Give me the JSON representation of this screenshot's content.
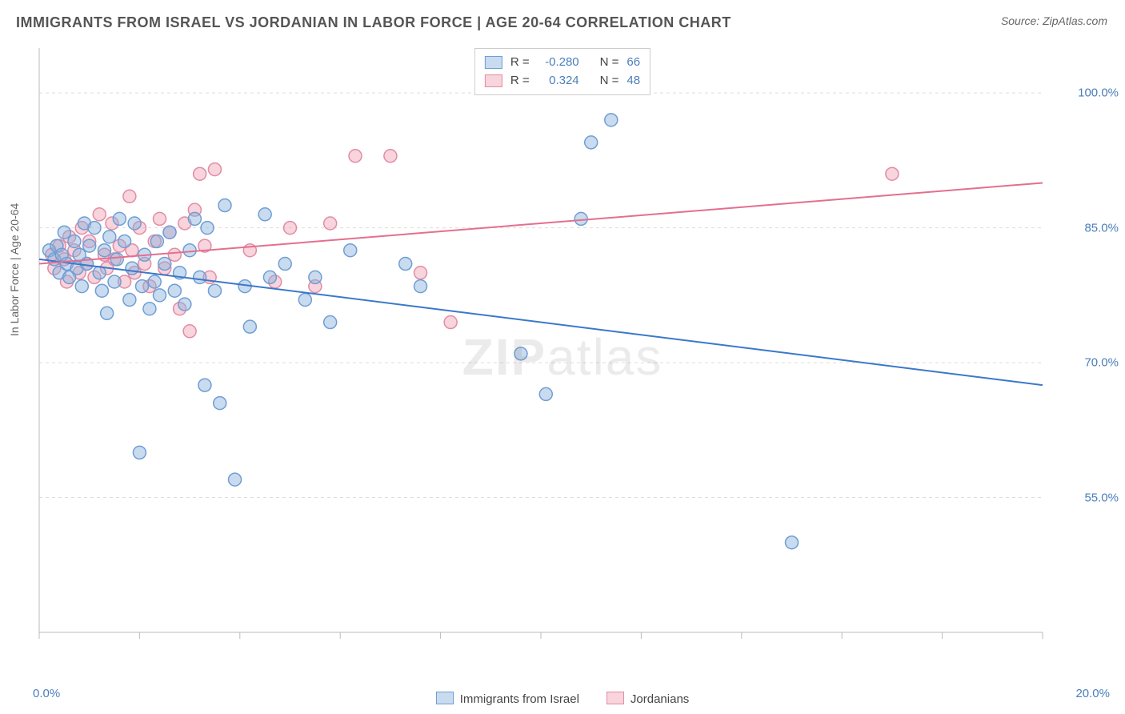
{
  "title": "IMMIGRANTS FROM ISRAEL VS JORDANIAN IN LABOR FORCE | AGE 20-64 CORRELATION CHART",
  "source_label": "Source: ",
  "source_name": "ZipAtlas.com",
  "ylabel": "In Labor Force | Age 20-64",
  "watermark_a": "ZIP",
  "watermark_b": "atlas",
  "chart": {
    "type": "scatter",
    "xlim": [
      0.0,
      20.0
    ],
    "ylim": [
      40.0,
      105.0
    ],
    "xticks": [
      0,
      2,
      4,
      6,
      8,
      10,
      12,
      14,
      16,
      18,
      20
    ],
    "xtick_labels_shown": {
      "0": "0.0%",
      "20": "20.0%"
    },
    "yticks": [
      55.0,
      70.0,
      85.0,
      100.0
    ],
    "ytick_labels": [
      "55.0%",
      "70.0%",
      "85.0%",
      "100.0%"
    ],
    "grid_color": "#dddddd",
    "grid_dash": "4,4",
    "axis_color": "#bbbbbb",
    "background_color": "#ffffff",
    "marker_radius": 8,
    "marker_stroke_width": 1.5,
    "line_width": 2,
    "label_fontsize": 15,
    "label_color": "#4a7ebb",
    "series": [
      {
        "name": "Immigrants from Israel",
        "fill": "rgba(135,175,220,0.45)",
        "stroke": "#6f9ed4",
        "line_color": "#3b78c9",
        "R": "-0.280",
        "N": "66",
        "trend": {
          "x1": 0.0,
          "y1": 81.5,
          "x2": 20.0,
          "y2": 67.5
        },
        "points": [
          [
            0.2,
            82.5
          ],
          [
            0.3,
            81.5
          ],
          [
            0.35,
            83.0
          ],
          [
            0.4,
            80.0
          ],
          [
            0.45,
            82.0
          ],
          [
            0.5,
            84.5
          ],
          [
            0.55,
            81.0
          ],
          [
            0.6,
            79.5
          ],
          [
            0.7,
            83.5
          ],
          [
            0.75,
            80.5
          ],
          [
            0.8,
            82.0
          ],
          [
            0.85,
            78.5
          ],
          [
            0.9,
            85.5
          ],
          [
            0.95,
            81.0
          ],
          [
            1.0,
            83.0
          ],
          [
            1.1,
            85.0
          ],
          [
            1.2,
            80.0
          ],
          [
            1.25,
            78.0
          ],
          [
            1.3,
            82.5
          ],
          [
            1.35,
            75.5
          ],
          [
            1.4,
            84.0
          ],
          [
            1.5,
            79.0
          ],
          [
            1.55,
            81.5
          ],
          [
            1.6,
            86.0
          ],
          [
            1.7,
            83.5
          ],
          [
            1.8,
            77.0
          ],
          [
            1.85,
            80.5
          ],
          [
            1.9,
            85.5
          ],
          [
            2.0,
            60.0
          ],
          [
            2.05,
            78.5
          ],
          [
            2.1,
            82.0
          ],
          [
            2.2,
            76.0
          ],
          [
            2.3,
            79.0
          ],
          [
            2.35,
            83.5
          ],
          [
            2.4,
            77.5
          ],
          [
            2.5,
            81.0
          ],
          [
            2.6,
            84.5
          ],
          [
            2.7,
            78.0
          ],
          [
            2.8,
            80.0
          ],
          [
            2.9,
            76.5
          ],
          [
            3.0,
            82.5
          ],
          [
            3.1,
            86.0
          ],
          [
            3.2,
            79.5
          ],
          [
            3.3,
            67.5
          ],
          [
            3.35,
            85.0
          ],
          [
            3.5,
            78.0
          ],
          [
            3.6,
            65.5
          ],
          [
            3.7,
            87.5
          ],
          [
            3.9,
            57.0
          ],
          [
            4.1,
            78.5
          ],
          [
            4.2,
            74.0
          ],
          [
            4.5,
            86.5
          ],
          [
            4.6,
            79.5
          ],
          [
            4.9,
            81.0
          ],
          [
            5.3,
            77.0
          ],
          [
            5.5,
            79.5
          ],
          [
            5.8,
            74.5
          ],
          [
            6.2,
            82.5
          ],
          [
            7.3,
            81.0
          ],
          [
            7.6,
            78.5
          ],
          [
            9.6,
            71.0
          ],
          [
            10.1,
            66.5
          ],
          [
            10.8,
            86.0
          ],
          [
            11.0,
            94.5
          ],
          [
            11.4,
            97.0
          ],
          [
            15.0,
            50.0
          ]
        ]
      },
      {
        "name": "Jordanians",
        "fill": "rgba(240,160,180,0.45)",
        "stroke": "#e28ca4",
        "line_color": "#e36f8f",
        "R": "0.324",
        "N": "48",
        "trend": {
          "x1": 0.0,
          "y1": 81.0,
          "x2": 20.0,
          "y2": 90.0
        },
        "points": [
          [
            0.25,
            82.0
          ],
          [
            0.3,
            80.5
          ],
          [
            0.4,
            83.0
          ],
          [
            0.5,
            81.5
          ],
          [
            0.55,
            79.0
          ],
          [
            0.6,
            84.0
          ],
          [
            0.7,
            82.5
          ],
          [
            0.8,
            80.0
          ],
          [
            0.85,
            85.0
          ],
          [
            0.95,
            81.0
          ],
          [
            1.0,
            83.5
          ],
          [
            1.1,
            79.5
          ],
          [
            1.2,
            86.5
          ],
          [
            1.3,
            82.0
          ],
          [
            1.35,
            80.5
          ],
          [
            1.45,
            85.5
          ],
          [
            1.5,
            81.5
          ],
          [
            1.6,
            83.0
          ],
          [
            1.7,
            79.0
          ],
          [
            1.8,
            88.5
          ],
          [
            1.85,
            82.5
          ],
          [
            1.9,
            80.0
          ],
          [
            2.0,
            85.0
          ],
          [
            2.1,
            81.0
          ],
          [
            2.2,
            78.5
          ],
          [
            2.3,
            83.5
          ],
          [
            2.4,
            86.0
          ],
          [
            2.5,
            80.5
          ],
          [
            2.6,
            84.5
          ],
          [
            2.7,
            82.0
          ],
          [
            2.8,
            76.0
          ],
          [
            2.9,
            85.5
          ],
          [
            3.0,
            73.5
          ],
          [
            3.1,
            87.0
          ],
          [
            3.2,
            91.0
          ],
          [
            3.3,
            83.0
          ],
          [
            3.4,
            79.5
          ],
          [
            3.5,
            91.5
          ],
          [
            4.2,
            82.5
          ],
          [
            4.7,
            79.0
          ],
          [
            5.0,
            85.0
          ],
          [
            5.5,
            78.5
          ],
          [
            5.8,
            85.5
          ],
          [
            6.3,
            93.0
          ],
          [
            7.0,
            93.0
          ],
          [
            7.6,
            80.0
          ],
          [
            8.2,
            74.5
          ],
          [
            17.0,
            91.0
          ]
        ]
      }
    ]
  },
  "legend_bottom": [
    {
      "label": "Immigrants from Israel",
      "fill": "rgba(135,175,220,0.45)",
      "stroke": "#6f9ed4"
    },
    {
      "label": "Jordanians",
      "fill": "rgba(240,160,180,0.45)",
      "stroke": "#e28ca4"
    }
  ],
  "stats_box_labels": {
    "R": "R =",
    "N": "N ="
  }
}
